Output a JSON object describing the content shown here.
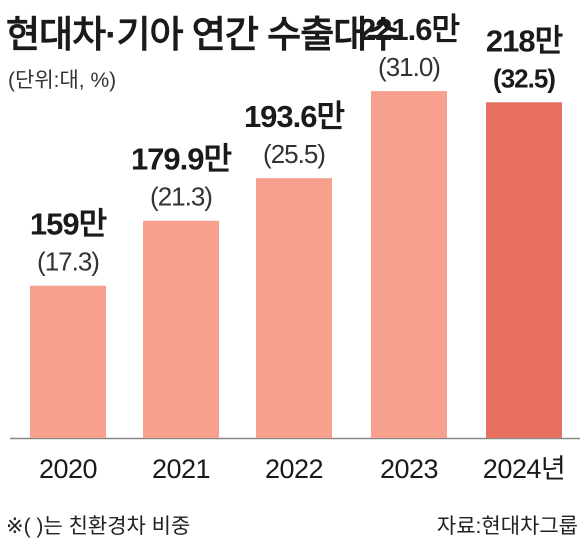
{
  "header": {
    "title": "현대차·기아 연간 수출대수",
    "unit": "(단위:대, %)"
  },
  "footer": {
    "footnote": "※(   )는 친환경차 비중",
    "source": "자료:현대차그룹"
  },
  "colors": {
    "bar": "#F6A08D",
    "highlight_bar": "#E76F60",
    "axis": "#888888"
  },
  "chart_data": {
    "type": "bar",
    "title": "현대차·기아 연간 수출대수",
    "categories": [
      "2020",
      "2021",
      "2022",
      "2023",
      "2024년"
    ],
    "values": [
      159,
      179.9,
      193.6,
      221.6,
      218
    ],
    "value_labels": [
      "159만",
      "179.9만",
      "193.6만",
      "221.6만",
      "218만"
    ],
    "eco_share": [
      17.3,
      21.3,
      25.5,
      31.0,
      32.5
    ],
    "eco_share_labels": [
      "(17.3)",
      "(21.3)",
      "(25.5)",
      "(31.0)",
      "(32.5)"
    ],
    "highlight_index": 4,
    "ylim": [
      110,
      230
    ],
    "grid": false,
    "xlabel": "",
    "ylabel": ""
  }
}
